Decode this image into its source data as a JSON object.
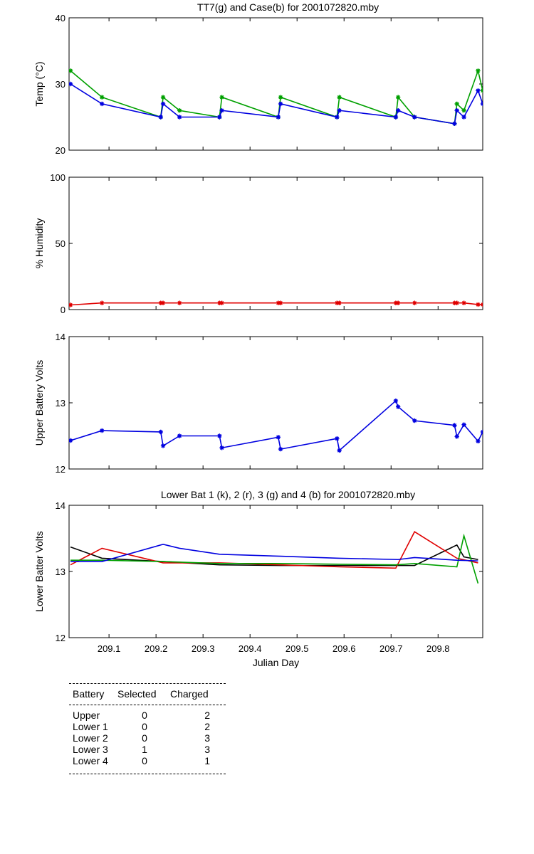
{
  "chart_data": [
    {
      "type": "line",
      "title": "TT7(g) and Case(b) for 2001072820.mby",
      "xlabel": "",
      "ylabel": "Temp  (°C)",
      "xlim": [
        209.015,
        209.895
      ],
      "ylim": [
        20,
        40
      ],
      "yticks": [
        20,
        30,
        40
      ],
      "series": [
        {
          "name": "TT7",
          "color": "#00a000",
          "marker": "*",
          "x": [
            209.018,
            209.085,
            209.21,
            209.215,
            209.25,
            209.335,
            209.34,
            209.46,
            209.465,
            209.585,
            209.59,
            209.71,
            209.715,
            209.75,
            209.835,
            209.84,
            209.855,
            209.885,
            209.895
          ],
          "y": [
            32,
            28,
            25,
            28,
            26,
            25,
            28,
            25,
            28,
            25,
            28,
            25,
            28,
            25,
            24,
            27,
            26,
            32,
            29
          ]
        },
        {
          "name": "Case",
          "color": "#0000e0",
          "marker": "*",
          "x": [
            209.018,
            209.085,
            209.21,
            209.215,
            209.25,
            209.335,
            209.34,
            209.46,
            209.465,
            209.585,
            209.59,
            209.71,
            209.715,
            209.75,
            209.835,
            209.84,
            209.855,
            209.885,
            209.895
          ],
          "y": [
            30,
            27,
            25,
            27,
            25,
            25,
            26,
            25,
            27,
            25,
            26,
            25,
            26,
            25,
            24,
            26,
            25,
            29,
            27
          ]
        }
      ]
    },
    {
      "type": "line",
      "title": "",
      "xlabel": "",
      "ylabel": "% Humidity",
      "xlim": [
        209.015,
        209.895
      ],
      "ylim": [
        0,
        100
      ],
      "yticks": [
        0,
        50,
        100
      ],
      "series": [
        {
          "name": "Humidity",
          "color": "#e00000",
          "marker": "*",
          "x": [
            209.018,
            209.085,
            209.21,
            209.215,
            209.25,
            209.335,
            209.34,
            209.46,
            209.465,
            209.585,
            209.59,
            209.71,
            209.715,
            209.75,
            209.835,
            209.84,
            209.855,
            209.885,
            209.895
          ],
          "y": [
            3.5,
            5,
            5,
            5,
            5,
            5,
            5,
            5,
            5,
            5,
            5,
            5,
            5,
            5,
            5,
            5,
            5,
            3.8,
            3.8
          ]
        }
      ]
    },
    {
      "type": "line",
      "title": "",
      "xlabel": "",
      "ylabel": "Upper Battery Volts",
      "xlim": [
        209.015,
        209.895
      ],
      "ylim": [
        12,
        14
      ],
      "yticks": [
        12,
        13,
        14
      ],
      "series": [
        {
          "name": "Upper",
          "color": "#0000e0",
          "marker": "*",
          "x": [
            209.018,
            209.085,
            209.21,
            209.215,
            209.25,
            209.335,
            209.34,
            209.46,
            209.465,
            209.585,
            209.59,
            209.71,
            209.715,
            209.75,
            209.835,
            209.84,
            209.855,
            209.885,
            209.895
          ],
          "y": [
            12.43,
            12.58,
            12.56,
            12.35,
            12.5,
            12.5,
            12.32,
            12.48,
            12.3,
            12.46,
            12.28,
            13.03,
            12.94,
            12.73,
            12.66,
            12.49,
            12.67,
            12.42,
            12.56
          ]
        }
      ]
    },
    {
      "type": "line",
      "title": "Lower Bat 1 (k), 2 (r), 3 (g) and 4 (b) for 2001072820.mby",
      "xlabel": "Julian Day",
      "ylabel": "Lower Batter Volts",
      "xlim": [
        209.015,
        209.895
      ],
      "ylim": [
        12,
        14
      ],
      "yticks": [
        12,
        13,
        14
      ],
      "xticks": [
        "209.1",
        "209.2",
        "209.3",
        "209.4",
        "209.5",
        "209.6",
        "209.7",
        "209.8"
      ],
      "series": [
        {
          "name": "Lower 1",
          "color": "#000000",
          "x": [
            209.018,
            209.085,
            209.215,
            209.335,
            209.465,
            209.59,
            209.715,
            209.75,
            209.84,
            209.855,
            209.885
          ],
          "y": [
            13.37,
            13.2,
            13.15,
            13.1,
            13.09,
            13.09,
            13.09,
            13.09,
            13.4,
            13.22,
            13.18
          ]
        },
        {
          "name": "Lower 2",
          "color": "#e00000",
          "x": [
            209.018,
            209.085,
            209.215,
            209.335,
            209.465,
            209.59,
            209.71,
            209.75,
            209.84,
            209.885
          ],
          "y": [
            13.1,
            13.35,
            13.13,
            13.13,
            13.1,
            13.07,
            13.05,
            13.6,
            13.2,
            13.13
          ]
        },
        {
          "name": "Lower 3",
          "color": "#00a000",
          "x": [
            209.018,
            209.085,
            209.215,
            209.335,
            209.465,
            209.59,
            209.71,
            209.75,
            209.84,
            209.855,
            209.885
          ],
          "y": [
            13.17,
            13.17,
            13.15,
            13.12,
            13.12,
            13.11,
            13.1,
            13.12,
            13.07,
            13.54,
            12.82
          ]
        },
        {
          "name": "Lower 4",
          "color": "#0000e0",
          "x": [
            209.018,
            209.085,
            209.215,
            209.25,
            209.335,
            209.465,
            209.59,
            209.715,
            209.75,
            209.84,
            209.885
          ],
          "y": [
            13.15,
            13.15,
            13.41,
            13.35,
            13.26,
            13.23,
            13.2,
            13.18,
            13.21,
            13.17,
            13.16
          ]
        }
      ]
    }
  ],
  "battery_table": {
    "headers": [
      "Battery",
      "Selected",
      "Charged"
    ],
    "rows": [
      [
        "Upper",
        "0",
        "2"
      ],
      [
        "Lower 1",
        "0",
        "2"
      ],
      [
        "Lower 2",
        "0",
        "3"
      ],
      [
        "Lower 3",
        "1",
        "3"
      ],
      [
        "Lower 4",
        "0",
        "1"
      ]
    ]
  }
}
